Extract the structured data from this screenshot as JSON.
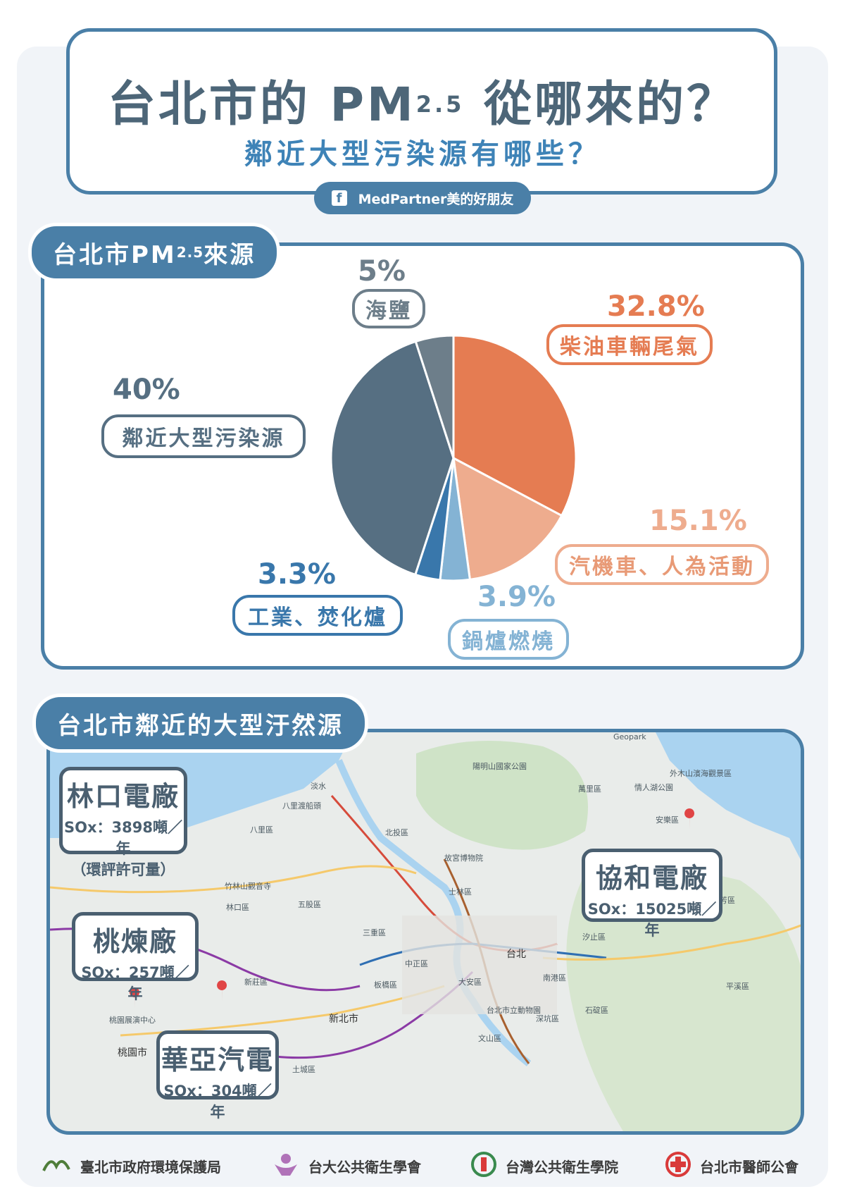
{
  "header": {
    "title_prefix": "台北市的",
    "title_pm": "PM",
    "title_sub": "2.5",
    "title_suffix": "從哪來的？",
    "subtitle": "鄰近大型污染源有哪些？",
    "credit": "MedPartner美的好朋友",
    "credit_icon": "facebook-icon"
  },
  "section1": {
    "title_prefix": "台北市PM",
    "title_sub": "2.5",
    "title_suffix": "來源"
  },
  "section2": {
    "title": "台北市鄰近的大型汙然源"
  },
  "chart_data": {
    "type": "pie",
    "slices": [
      {
        "label": "柴油車輛尾氣",
        "value": 32.8,
        "display": "32.8%",
        "color": "#e57c52"
      },
      {
        "label": "汽機車、人為活動",
        "value": 15.1,
        "display": "15.1%",
        "color": "#eeac8e"
      },
      {
        "label": "鍋爐燃燒",
        "value": 3.9,
        "display": "3.9%",
        "color": "#84b3d4"
      },
      {
        "label": "工業、焚化爐",
        "value": 3.3,
        "display": "3.3%",
        "color": "#3977ab"
      },
      {
        "label": "鄰近大型污染源",
        "value": 40,
        "display": "40%",
        "color": "#566f82"
      },
      {
        "label": "海鹽",
        "value": 5,
        "display": "5%",
        "color": "#6d7e8a"
      }
    ]
  },
  "map": {
    "plants": [
      {
        "name": "林口電廠",
        "sox": "SOx：3898噸／年",
        "note": "（環評許可量）"
      },
      {
        "name": "桃煉廠",
        "sox": "SOx：257噸／年",
        "note": ""
      },
      {
        "name": "華亞汽電",
        "sox": "SOx：304噸／年",
        "note": ""
      },
      {
        "name": "協和電廠",
        "sox": "SOx：15025噸／年",
        "note": ""
      }
    ],
    "labels": [
      "台北",
      "新北市",
      "桃園市",
      "淡水",
      "八里區",
      "北投區",
      "士林區",
      "大安區",
      "萬里區",
      "安樂區",
      "汐止區",
      "南港區",
      "中正區",
      "林口區",
      "五股區",
      "新莊區",
      "土城區",
      "三重區",
      "板橋區",
      "文山區",
      "深坑區",
      "石碇區",
      "瑞芳區",
      "平溪區",
      "陽明山國家公園",
      "故宮博物院",
      "台北市立動物園",
      "外木山濱海觀景區",
      "八里渡船頭",
      "竹林山觀音寺",
      "桃園展演中心",
      "情人湖公園",
      "Geopark"
    ]
  },
  "footer": [
    {
      "label": "臺北市政府環境保護局",
      "icon": "epa-logo-icon"
    },
    {
      "label": "台大公共衛生學會",
      "icon": "ntu-public-health-logo-icon"
    },
    {
      "label": "台灣公共衛生學院",
      "icon": "public-health-college-logo-icon"
    },
    {
      "label": "台北市醫師公會",
      "icon": "red-cross-icon"
    }
  ]
}
